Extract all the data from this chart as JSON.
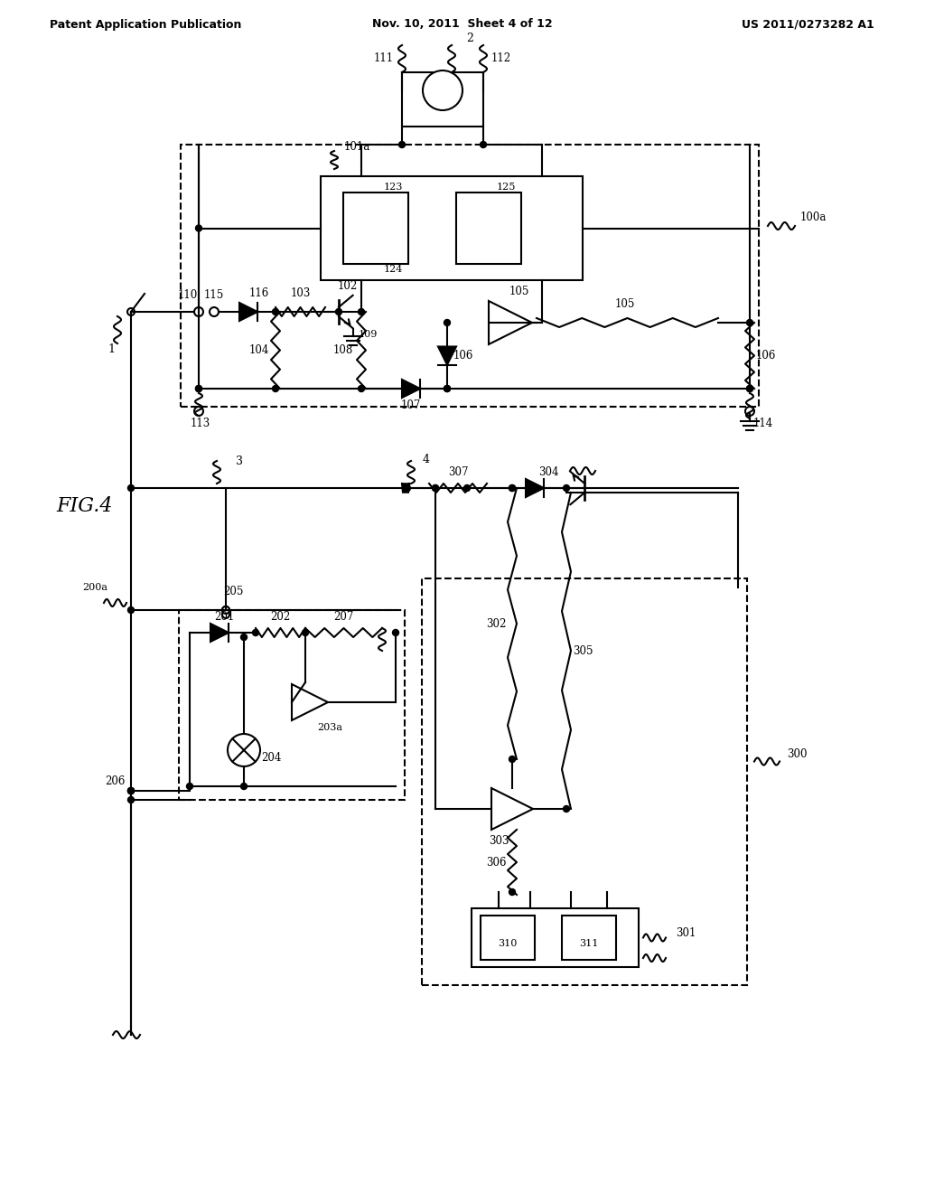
{
  "header_left": "Patent Application Publication",
  "header_mid": "Nov. 10, 2011  Sheet 4 of 12",
  "header_right": "US 2011/0273282 A1",
  "fig_label": "FIG.4"
}
